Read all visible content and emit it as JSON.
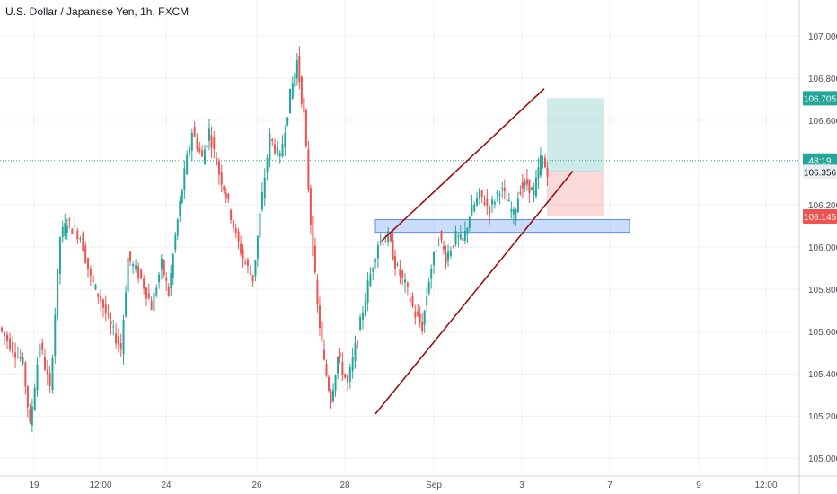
{
  "chart_data": {
    "type": "candlestick",
    "title": "U.S. Dollar / Japanese Yen, 1h, FXCM",
    "symbol": "USDJPY",
    "timeframe": "1h",
    "source": "FXCM",
    "x_tick_labels": [
      "19",
      "12:00",
      "24",
      "26",
      "28",
      "Sep",
      "3",
      "7",
      "9",
      "12:00"
    ],
    "y_tick_labels": [
      "107.000",
      "106.800",
      "106.600",
      "106.200",
      "106.000",
      "105.800",
      "105.600",
      "105.400",
      "105.200",
      "105.000"
    ],
    "ylim": [
      104.95,
      107.17
    ],
    "grid": true,
    "price_badges": [
      {
        "label": "106.705",
        "value": 106.705,
        "color": "#26a69a"
      },
      {
        "label": "48:19",
        "value": 106.41,
        "color": "#26a69a"
      },
      {
        "label": "106.356",
        "value": 106.356,
        "color": "#eceff1"
      },
      {
        "label": "106.145",
        "value": 106.145,
        "color": "#ef5350"
      }
    ],
    "current_price": 106.41,
    "position": {
      "entry": 106.356,
      "target": 106.705,
      "stop": 106.145
    },
    "support_zone": {
      "low": 106.07,
      "high": 106.13
    },
    "channel": {
      "lower": [
        [
          0,
          105.21
        ],
        [
          1,
          106.36
        ]
      ],
      "upper": [
        [
          0,
          106.03
        ],
        [
          1,
          106.75
        ]
      ]
    },
    "price_path": [
      [
        0,
        105.62
      ],
      [
        0.02,
        105.52
      ],
      [
        0.035,
        105.45
      ],
      [
        0.045,
        105.15
      ],
      [
        0.06,
        105.55
      ],
      [
        0.075,
        105.32
      ],
      [
        0.09,
        106.05
      ],
      [
        0.1,
        106.12
      ],
      [
        0.12,
        106.05
      ],
      [
        0.135,
        105.85
      ],
      [
        0.15,
        105.75
      ],
      [
        0.165,
        105.62
      ],
      [
        0.18,
        105.52
      ],
      [
        0.19,
        105.95
      ],
      [
        0.21,
        105.85
      ],
      [
        0.225,
        105.72
      ],
      [
        0.24,
        105.92
      ],
      [
        0.25,
        105.78
      ],
      [
        0.26,
        106.05
      ],
      [
        0.27,
        106.28
      ],
      [
        0.285,
        106.55
      ],
      [
        0.3,
        106.42
      ],
      [
        0.31,
        106.55
      ],
      [
        0.325,
        106.35
      ],
      [
        0.335,
        106.25
      ],
      [
        0.35,
        106.05
      ],
      [
        0.36,
        105.95
      ],
      [
        0.375,
        105.85
      ],
      [
        0.385,
        106.15
      ],
      [
        0.4,
        106.52
      ],
      [
        0.415,
        106.42
      ],
      [
        0.43,
        106.72
      ],
      [
        0.44,
        106.88
      ],
      [
        0.45,
        106.62
      ],
      [
        0.46,
        106.12
      ],
      [
        0.47,
        105.72
      ],
      [
        0.48,
        105.45
      ],
      [
        0.49,
        105.28
      ],
      [
        0.5,
        105.48
      ],
      [
        0.515,
        105.35
      ],
      [
        0.53,
        105.58
      ],
      [
        0.545,
        105.82
      ],
      [
        0.56,
        106.02
      ],
      [
        0.575,
        106.05
      ],
      [
        0.585,
        105.92
      ],
      [
        0.6,
        105.82
      ],
      [
        0.615,
        105.68
      ],
      [
        0.625,
        105.62
      ],
      [
        0.635,
        105.85
      ],
      [
        0.65,
        106.05
      ],
      [
        0.66,
        105.95
      ],
      [
        0.675,
        106.05
      ],
      [
        0.685,
        106.02
      ],
      [
        0.695,
        106.15
      ],
      [
        0.71,
        106.25
      ],
      [
        0.725,
        106.18
      ],
      [
        0.74,
        106.28
      ],
      [
        0.75,
        106.22
      ],
      [
        0.76,
        106.15
      ],
      [
        0.77,
        106.28
      ],
      [
        0.78,
        106.3
      ],
      [
        0.79,
        106.25
      ],
      [
        0.8,
        106.42
      ],
      [
        0.81,
        106.36
      ]
    ]
  }
}
